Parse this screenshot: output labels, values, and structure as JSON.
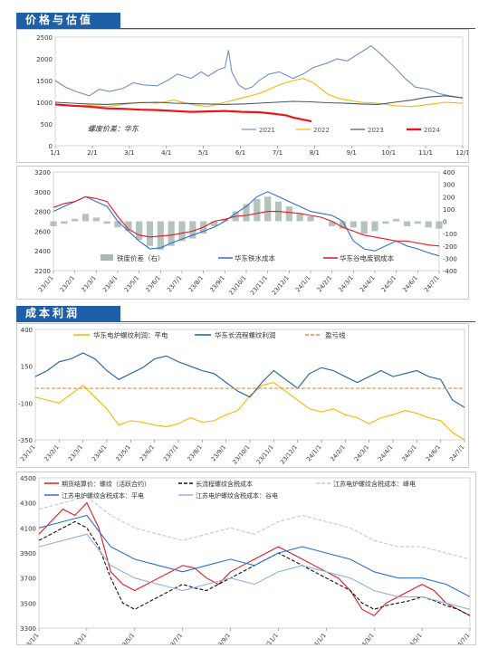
{
  "sections": {
    "price_valuation": "价格与估值",
    "cost_profit": "成本利润"
  },
  "colors": {
    "accent": "#1e5fa8",
    "red": "#e8161f",
    "blue": "#2f6fd2",
    "lightblue": "#9db4dc",
    "yellow": "#f5b800",
    "black": "#000000",
    "orange": "#f08b3a",
    "grey": "#a7b9b0"
  },
  "chart_data": [
    {
      "type": "line",
      "note_label": "螺废价差：华东",
      "x_ticks": [
        "1/1",
        "2/1",
        "3/1",
        "4/1",
        "5/1",
        "6/1",
        "7/1",
        "8/1",
        "9/1",
        "10/1",
        "11/1",
        "12/1"
      ],
      "ylim": [
        0,
        2500
      ],
      "y_ticks": [
        0,
        500,
        1000,
        1500,
        2000,
        2500
      ],
      "legend_position": "bottom-right",
      "series": [
        {
          "name": "2021",
          "color": "#6f8fc9",
          "x": [
            0,
            0.3,
            0.6,
            0.8,
            1.0,
            1.3,
            1.6,
            2.0,
            2.3,
            2.6,
            3.0,
            3.3,
            3.6,
            4.0,
            4.3,
            4.5,
            4.8,
            5.0,
            5.1,
            5.2,
            5.4,
            5.6,
            5.8,
            6.0,
            6.3,
            6.6,
            7.0,
            7.3,
            7.6,
            8.0,
            8.3,
            8.6,
            9.0,
            9.3,
            9.6,
            10.0,
            10.3,
            10.6,
            11.0,
            11.3,
            11.6,
            12.0
          ],
          "y": [
            1500,
            1350,
            1250,
            1200,
            1150,
            1300,
            1250,
            1320,
            1450,
            1400,
            1380,
            1500,
            1650,
            1550,
            1700,
            1600,
            1750,
            1800,
            2200,
            1700,
            1400,
            1300,
            1350,
            1500,
            1650,
            1700,
            1550,
            1650,
            1800,
            1900,
            2000,
            1950,
            2150,
            2300,
            2100,
            1800,
            1550,
            1350,
            1300,
            1200,
            1150,
            1100
          ]
        },
        {
          "name": "2022",
          "color": "#f5b800",
          "x": [
            0,
            0.5,
            1.0,
            1.5,
            2.0,
            2.5,
            3.0,
            3.5,
            4.0,
            4.5,
            5.0,
            5.5,
            6.0,
            6.3,
            6.6,
            7.0,
            7.3,
            7.6,
            8.0,
            8.3,
            8.6,
            9.0,
            9.5,
            10.0,
            10.5,
            11.0,
            11.5,
            12.0
          ],
          "y": [
            950,
            920,
            930,
            900,
            950,
            1000,
            980,
            1050,
            950,
            900,
            1000,
            1100,
            1200,
            1300,
            1400,
            1500,
            1550,
            1450,
            1200,
            1100,
            1050,
            1000,
            980,
            920,
            900,
            950,
            1000,
            980
          ]
        },
        {
          "name": "2023",
          "color": "#4a5563",
          "x": [
            0,
            0.5,
            1.0,
            1.5,
            2.0,
            2.5,
            3.0,
            3.5,
            4.0,
            4.5,
            5.0,
            5.5,
            6.0,
            6.5,
            7.0,
            7.5,
            8.0,
            8.5,
            9.0,
            9.5,
            10.0,
            10.5,
            11.0,
            11.5,
            12.0
          ],
          "y": [
            1000,
            980,
            960,
            950,
            970,
            990,
            1000,
            980,
            970,
            960,
            950,
            960,
            980,
            1000,
            1020,
            1010,
            990,
            980,
            960,
            950,
            1000,
            1050,
            1120,
            1150,
            1100
          ]
        },
        {
          "name": "2024",
          "color": "#e8161f",
          "x": [
            0,
            0.5,
            1.0,
            1.5,
            2.0,
            2.5,
            3.0,
            3.5,
            4.0,
            4.5,
            5.0,
            5.5,
            6.0,
            6.4,
            6.8,
            7.0,
            7.3,
            7.55
          ],
          "y": [
            950,
            920,
            900,
            860,
            850,
            830,
            820,
            800,
            780,
            790,
            800,
            780,
            770,
            740,
            700,
            650,
            600,
            560
          ]
        }
      ]
    },
    {
      "type": "line",
      "x_ticks": [
        "23/1/1",
        "23/2/1",
        "23/3/1",
        "23/4/1",
        "23/5/1",
        "23/6/1",
        "23/7/1",
        "23/8/1",
        "23/9/1",
        "23/10/1",
        "23/11/1",
        "23/12/1",
        "24/1/1",
        "24/2/1",
        "24/3/1",
        "24/4/1",
        "24/5/1",
        "24/6/1",
        "24/7/1"
      ],
      "ylim": [
        2200,
        3200
      ],
      "y_ticks": [
        2200,
        2400,
        2600,
        2800,
        3000,
        3200
      ],
      "y2lim": [
        -400,
        400
      ],
      "y2_ticks": [
        -400,
        -300,
        -200,
        -100,
        0,
        100,
        200,
        300,
        400
      ],
      "legend_position": "bottom",
      "series": [
        {
          "name": "铁废价差（右）",
          "type": "area",
          "color": "#a7b9b0",
          "x": [
            0,
            0.5,
            1.0,
            1.5,
            2.0,
            2.5,
            3.0,
            3.5,
            4.0,
            4.5,
            5.0,
            5.5,
            6.0,
            6.5,
            7.0,
            7.5,
            8.0,
            8.5,
            9.0,
            9.5,
            10.0,
            10.5,
            11.0,
            11.5,
            12.0,
            12.5,
            13.0,
            13.5,
            14.0,
            14.5,
            15.0,
            15.5,
            16.0,
            16.5,
            17.0,
            17.5,
            18.0
          ],
          "y": [
            -40,
            -20,
            20,
            60,
            30,
            -20,
            -50,
            -80,
            -150,
            -200,
            -230,
            -200,
            -160,
            -140,
            -100,
            -40,
            20,
            80,
            140,
            180,
            200,
            160,
            120,
            60,
            40,
            0,
            -40,
            -60,
            -50,
            -100,
            -80,
            -20,
            20,
            -40,
            -20,
            -50,
            -60
          ]
        },
        {
          "name": "华东铁水成本",
          "type": "line",
          "color": "#2f6fd2",
          "x": [
            0,
            0.5,
            1.0,
            1.5,
            2.0,
            2.5,
            3.0,
            3.5,
            4.0,
            4.5,
            5.0,
            5.5,
            6.0,
            6.5,
            7.0,
            7.5,
            8.0,
            8.5,
            9.0,
            9.5,
            10.0,
            10.5,
            11.0,
            11.5,
            12.0,
            12.5,
            13.0,
            13.5,
            14.0,
            14.5,
            15.0,
            15.5,
            16.0,
            16.5,
            17.0,
            17.5,
            18.0
          ],
          "y": [
            2800,
            2850,
            2900,
            2950,
            2900,
            2850,
            2700,
            2600,
            2500,
            2420,
            2430,
            2480,
            2520,
            2560,
            2600,
            2640,
            2700,
            2780,
            2850,
            2950,
            3000,
            2950,
            2900,
            2850,
            2800,
            2780,
            2760,
            2700,
            2500,
            2420,
            2400,
            2450,
            2500,
            2450,
            2420,
            2380,
            2350
          ]
        },
        {
          "name": "华东谷电废钢成本",
          "type": "line",
          "color": "#e8161f",
          "x": [
            0,
            0.5,
            1.0,
            1.5,
            2.0,
            2.5,
            3.0,
            3.5,
            4.0,
            4.5,
            5.0,
            5.5,
            6.0,
            6.5,
            7.0,
            7.5,
            8.0,
            8.5,
            9.0,
            9.5,
            10.0,
            10.5,
            11.0,
            11.5,
            12.0,
            12.5,
            13.0,
            13.5,
            14.0,
            14.5,
            15.0,
            15.5,
            16.0,
            16.5,
            17.0,
            17.5,
            18.0
          ],
          "y": [
            2840,
            2880,
            2900,
            2950,
            2930,
            2900,
            2750,
            2620,
            2560,
            2540,
            2550,
            2560,
            2580,
            2600,
            2640,
            2700,
            2720,
            2750,
            2760,
            2780,
            2800,
            2800,
            2790,
            2780,
            2760,
            2740,
            2700,
            2640,
            2600,
            2560,
            2540,
            2520,
            2500,
            2500,
            2480,
            2460,
            2450
          ]
        }
      ]
    },
    {
      "type": "line",
      "x_ticks": [
        "23/1/1",
        "23/2/1",
        "23/3/1",
        "23/4/1",
        "23/5/1",
        "23/6/1",
        "23/7/1",
        "23/8/1",
        "23/9/1",
        "23/10/1",
        "23/11/1",
        "23/12/1",
        "24/1/1",
        "24/2/1",
        "24/3/1",
        "24/4/1",
        "24/5/1",
        "24/6/1",
        "24/7/1"
      ],
      "ylim": [
        -350,
        400
      ],
      "y_ticks": [
        -350,
        -100,
        150,
        400
      ],
      "legend_position": "top",
      "series": [
        {
          "name": "华东电炉螺纹利润：平电",
          "color": "#f5b800",
          "x": [
            0,
            0.5,
            1.0,
            1.5,
            2.0,
            2.5,
            3.0,
            3.5,
            4.0,
            4.5,
            5.0,
            5.5,
            6.0,
            6.5,
            7.0,
            7.5,
            8.0,
            8.5,
            9.0,
            9.5,
            10.0,
            10.5,
            11.0,
            11.5,
            12.0,
            12.5,
            13.0,
            13.5,
            14.0,
            14.5,
            15.0,
            15.5,
            16.0,
            16.5,
            17.0,
            17.5,
            18.0
          ],
          "y": [
            -60,
            -80,
            -100,
            -40,
            20,
            -60,
            -140,
            -250,
            -220,
            -230,
            -250,
            -260,
            -240,
            -200,
            -230,
            -220,
            -180,
            -150,
            -50,
            20,
            40,
            -20,
            -80,
            -140,
            -160,
            -140,
            -180,
            -200,
            -240,
            -200,
            -180,
            -150,
            -170,
            -200,
            -220,
            -300,
            -350
          ]
        },
        {
          "name": "华东长流程螺纹利润",
          "color": "#1e5fa8",
          "x": [
            0,
            0.5,
            1.0,
            1.5,
            2.0,
            2.5,
            3.0,
            3.5,
            4.0,
            4.5,
            5.0,
            5.5,
            6.0,
            6.5,
            7.0,
            7.5,
            8.0,
            8.5,
            9.0,
            9.5,
            10.0,
            10.5,
            11.0,
            11.5,
            12.0,
            12.5,
            13.0,
            13.5,
            14.0,
            14.5,
            15.0,
            15.5,
            16.0,
            16.5,
            17.0,
            17.5,
            18.0
          ],
          "y": [
            80,
            120,
            180,
            200,
            240,
            200,
            120,
            60,
            100,
            140,
            200,
            220,
            180,
            150,
            120,
            100,
            40,
            -20,
            -60,
            40,
            120,
            60,
            0,
            100,
            140,
            120,
            80,
            40,
            80,
            120,
            80,
            100,
            120,
            80,
            60,
            -80,
            -130
          ]
        },
        {
          "name": "盈亏线",
          "color": "#f08b3a",
          "dashed": true,
          "x": [
            0,
            18
          ],
          "y": [
            0,
            0
          ]
        }
      ]
    },
    {
      "type": "line",
      "x_ticks": [
        "23/1/1",
        "23/3/1",
        "23/5/1",
        "23/7/1",
        "23/9/1",
        "23/11/1",
        "24/1/1",
        "24/3/1",
        "24/5/1",
        "24/7/1"
      ],
      "ylim": [
        3300,
        4500
      ],
      "y_ticks": [
        3300,
        3500,
        3700,
        3900,
        4100,
        4300,
        4500
      ],
      "legend_position": "top",
      "series": [
        {
          "name": "期货结算价：螺纹（活跃合约）",
          "color": "#e8161f",
          "x": [
            0,
            0.5,
            1.0,
            1.5,
            2.0,
            2.5,
            3.0,
            3.5,
            4.0,
            4.5,
            5.0,
            5.5,
            6.0,
            6.5,
            7.0,
            7.5,
            8.0,
            8.5,
            9.0,
            9.5,
            10.0,
            10.5,
            11.0,
            11.5,
            12.0,
            12.5,
            13.0,
            13.5,
            14.0,
            14.5,
            15.0,
            15.5,
            16.0,
            16.5,
            17.0,
            17.5,
            18.0
          ],
          "y": [
            4050,
            4150,
            4250,
            4200,
            4300,
            4100,
            3750,
            3650,
            3600,
            3650,
            3700,
            3750,
            3800,
            3780,
            3700,
            3650,
            3750,
            3800,
            3850,
            3900,
            3950,
            3900,
            3850,
            3800,
            3750,
            3700,
            3600,
            3450,
            3400,
            3500,
            3550,
            3600,
            3650,
            3600,
            3500,
            3450,
            3400
          ]
        },
        {
          "name": "长流程螺纹含税成本",
          "color": "#111111",
          "dashed": true,
          "x": [
            0,
            0.5,
            1.0,
            1.5,
            2.0,
            2.5,
            3.0,
            3.5,
            4.0,
            4.5,
            5.0,
            5.5,
            6.0,
            6.5,
            7.0,
            7.5,
            8.0,
            8.5,
            9.0,
            9.5,
            10.0,
            10.5,
            11.0,
            11.5,
            12.0,
            12.5,
            13.0,
            13.5,
            14.0,
            14.5,
            15.0,
            15.5,
            16.0,
            16.5,
            17.0,
            17.5,
            18.0
          ],
          "y": [
            4000,
            4050,
            4100,
            4150,
            4100,
            3950,
            3700,
            3500,
            3450,
            3500,
            3550,
            3600,
            3650,
            3620,
            3600,
            3650,
            3700,
            3750,
            3800,
            3850,
            3900,
            3850,
            3800,
            3750,
            3700,
            3650,
            3600,
            3500,
            3450,
            3480,
            3500,
            3520,
            3550,
            3520,
            3480,
            3450,
            3400
          ]
        },
        {
          "name": "江苏电炉螺纹含税成本：峰电",
          "color": "#bfc9d6",
          "dashed": true,
          "x": [
            0,
            1,
            2,
            3,
            4,
            5,
            6,
            7,
            8,
            9,
            10,
            11,
            12,
            13,
            14,
            15,
            16,
            17,
            18
          ],
          "y": [
            4250,
            4300,
            4350,
            4200,
            4100,
            4050,
            4000,
            4050,
            4100,
            4050,
            4150,
            4200,
            4150,
            4100,
            4000,
            3950,
            3950,
            3900,
            3850
          ]
        },
        {
          "name": "江苏电炉螺纹含税成本：平电",
          "color": "#2f6fd2",
          "x": [
            0,
            1,
            2,
            3,
            4,
            5,
            6,
            7,
            8,
            9,
            10,
            11,
            12,
            13,
            14,
            15,
            16,
            17,
            18
          ],
          "y": [
            4100,
            4150,
            4200,
            3950,
            3850,
            3800,
            3750,
            3800,
            3850,
            3800,
            3900,
            3950,
            3900,
            3850,
            3750,
            3700,
            3700,
            3650,
            3550
          ]
        },
        {
          "name": "江苏电炉螺纹含税成本：谷电",
          "color": "#8fb0e6",
          "x": [
            0,
            1,
            2,
            3,
            4,
            5,
            6,
            7,
            8,
            9,
            10,
            11,
            12,
            13,
            14,
            15,
            16,
            17,
            18
          ],
          "y": [
            3950,
            4000,
            4050,
            3800,
            3700,
            3650,
            3600,
            3650,
            3700,
            3650,
            3750,
            3800,
            3750,
            3700,
            3600,
            3550,
            3550,
            3500,
            3450
          ]
        }
      ]
    }
  ]
}
